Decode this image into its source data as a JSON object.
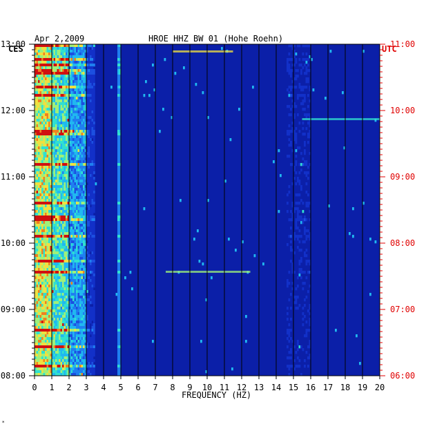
{
  "header": {
    "date": "Apr 2,2009",
    "station": "HROE HHZ BW 01 (Hohe Roehn)"
  },
  "chart_data": {
    "type": "heatmap",
    "title": "HROE HHZ BW 01 (Hohe Roehn)",
    "date": "Apr 2,2009",
    "left_tz": "CES",
    "right_tz": "UTC",
    "xlabel": "FREQUENCY (HZ)",
    "xlim": [
      0,
      20
    ],
    "x_ticks": [
      "0",
      "1",
      "2",
      "3",
      "4",
      "5",
      "6",
      "7",
      "8",
      "9",
      "10",
      "11",
      "12",
      "13",
      "14",
      "15",
      "16",
      "17",
      "18",
      "19",
      "20"
    ],
    "left_time_ticks": [
      "13:00",
      "12:00",
      "11:00",
      "10:00",
      "09:00",
      "08:00"
    ],
    "right_time_ticks": [
      "11:00",
      "10:00",
      "09:00",
      "08:00",
      "07:00",
      "06:00"
    ],
    "colors": {
      "background": "#0b1fa8",
      "grid": "#000000",
      "left_axis": "#000000",
      "right_axis": "#e00000"
    }
  },
  "footer": {
    "mark": "*"
  }
}
